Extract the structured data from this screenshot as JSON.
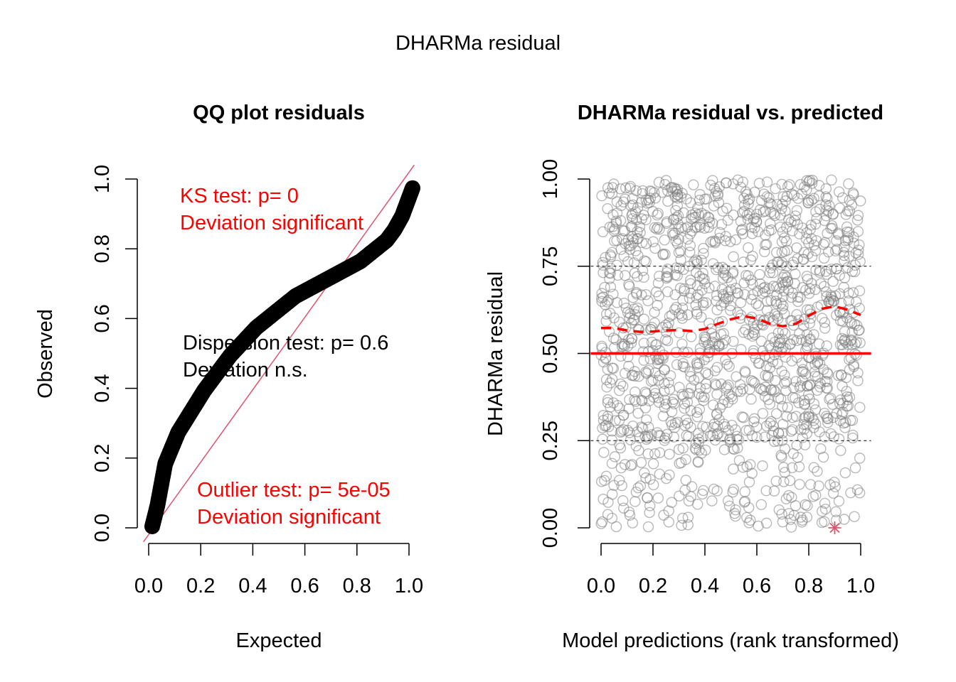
{
  "figure": {
    "outer_title": "DHARMa residual"
  },
  "chart_data": [
    {
      "type": "scatter",
      "title": "QQ plot residuals",
      "xlabel": "Expected",
      "ylabel": "Observed",
      "xlim": [
        0,
        1
      ],
      "ylim": [
        0,
        1
      ],
      "xticks": [
        "0.0",
        "0.2",
        "0.4",
        "0.6",
        "0.8",
        "1.0"
      ],
      "yticks": [
        "0.0",
        "0.2",
        "0.4",
        "0.6",
        "0.8",
        "1.0"
      ],
      "grid": false,
      "series": [
        {
          "role": "quantile points",
          "color": "#000000",
          "x": [
            0.0,
            0.02,
            0.05,
            0.1,
            0.15,
            0.2,
            0.25,
            0.3,
            0.35,
            0.4,
            0.45,
            0.5,
            0.55,
            0.6,
            0.65,
            0.7,
            0.75,
            0.8,
            0.85,
            0.9,
            0.93,
            0.96,
            0.98,
            1.0
          ],
          "y": [
            0.0,
            0.06,
            0.18,
            0.27,
            0.33,
            0.39,
            0.44,
            0.49,
            0.53,
            0.57,
            0.6,
            0.63,
            0.66,
            0.68,
            0.7,
            0.72,
            0.74,
            0.76,
            0.79,
            0.82,
            0.85,
            0.89,
            0.93,
            0.97
          ]
        },
        {
          "role": "1:1 reference line",
          "color": "#DF536B",
          "x": [
            -0.02,
            1.02
          ],
          "y": [
            -0.04,
            1.04
          ]
        }
      ],
      "annotations": [
        {
          "lines": [
            "KS test: p= 0",
            "Deviation  significant"
          ],
          "color": "#FF0000"
        },
        {
          "lines": [
            "Dispersion test: p= 0.6",
            "Deviation  n.s."
          ],
          "color": "#000000"
        },
        {
          "lines": [
            "Outlier test: p= 5e-05",
            "Deviation  significant"
          ],
          "color": "#FF0000"
        }
      ]
    },
    {
      "type": "scatter",
      "title": "DHARMa residual vs. predicted",
      "xlabel": "Model predictions (rank transformed)",
      "ylabel": "DHARMa residual",
      "xlim": [
        0,
        1
      ],
      "ylim": [
        0,
        1
      ],
      "xticks": [
        "0.0",
        "0.2",
        "0.4",
        "0.6",
        "0.8",
        "1.0"
      ],
      "yticks": [
        "0.00",
        "0.25",
        "0.50",
        "0.75",
        "1.00"
      ],
      "grid": false,
      "points": {
        "color": "#7F7F7F",
        "marker": "open-circle",
        "count": 1400,
        "distribution": "uniform-ish, denser above 0.25"
      },
      "reference_lines": [
        {
          "y": 0.5,
          "style": "solid",
          "color": "#FF0000"
        },
        {
          "y": 0.25,
          "style": "dashed",
          "color": "#000000"
        },
        {
          "y": 0.75,
          "style": "dashed",
          "color": "#000000"
        }
      ],
      "smooth_line": {
        "style": "dashed",
        "color": "#FF0000",
        "x": [
          0.0,
          0.05,
          0.1,
          0.15,
          0.2,
          0.25,
          0.3,
          0.35,
          0.4,
          0.45,
          0.5,
          0.55,
          0.6,
          0.65,
          0.7,
          0.75,
          0.8,
          0.85,
          0.9,
          0.95,
          1.0
        ],
        "y": [
          0.573,
          0.573,
          0.566,
          0.562,
          0.563,
          0.566,
          0.567,
          0.564,
          0.57,
          0.585,
          0.598,
          0.607,
          0.6,
          0.585,
          0.578,
          0.585,
          0.608,
          0.628,
          0.635,
          0.625,
          0.61
        ]
      },
      "outliers": [
        {
          "x": 0.9,
          "y": 0.0,
          "marker": "asterisk",
          "color": "#DF536B"
        }
      ]
    }
  ]
}
